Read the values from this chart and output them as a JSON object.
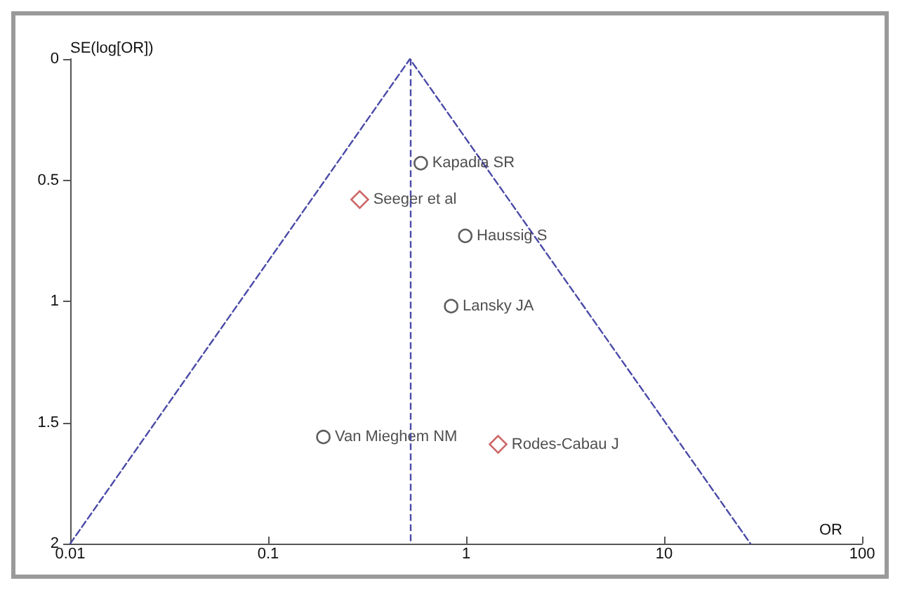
{
  "chart_data": {
    "type": "scatter",
    "xlabel": "OR",
    "ylabel": "SE(log[OR])",
    "xlim": [
      0.01,
      100
    ],
    "xticks": [
      0.01,
      0.1,
      1,
      10,
      100
    ],
    "ylim": [
      2,
      0
    ],
    "yticks": [
      0,
      0.5,
      1,
      1.5,
      2
    ],
    "log": "x",
    "grid": false,
    "legend": false,
    "series": [
      {
        "name": "Kapadia SR",
        "color": "#333333",
        "marker": "circle",
        "x": [
          0.59
        ],
        "values": [
          0.43
        ]
      },
      {
        "name": "Seeger et al",
        "color": "#c04040",
        "marker": "diamond",
        "x": [
          0.29
        ],
        "values": [
          0.58
        ]
      },
      {
        "name": "Haussig S",
        "color": "#333333",
        "marker": "circle",
        "x": [
          0.99
        ],
        "values": [
          0.73
        ]
      },
      {
        "name": "Lansky JA",
        "color": "#333333",
        "marker": "circle",
        "x": [
          0.84
        ],
        "values": [
          1.02
        ]
      },
      {
        "name": "Van Mieghem NM",
        "color": "#333333",
        "marker": "circle",
        "x": [
          0.19
        ],
        "values": [
          1.56
        ]
      },
      {
        "name": "Rodes-Cabau J",
        "color": "#c04040",
        "marker": "diamond",
        "x": [
          1.45
        ],
        "values": [
          1.59
        ]
      },
      {
        "type": "line",
        "color": "#4a4aa8",
        "line_style": "dashed",
        "marker": "none",
        "x": [
          0.01,
          0.52,
          27.3
        ],
        "values": [
          2,
          0,
          2
        ]
      }
    ],
    "ref_lines": [
      {
        "axis": "x",
        "value": 0.52,
        "color": "#4a4aa8",
        "line_style": "dashed"
      }
    ]
  }
}
